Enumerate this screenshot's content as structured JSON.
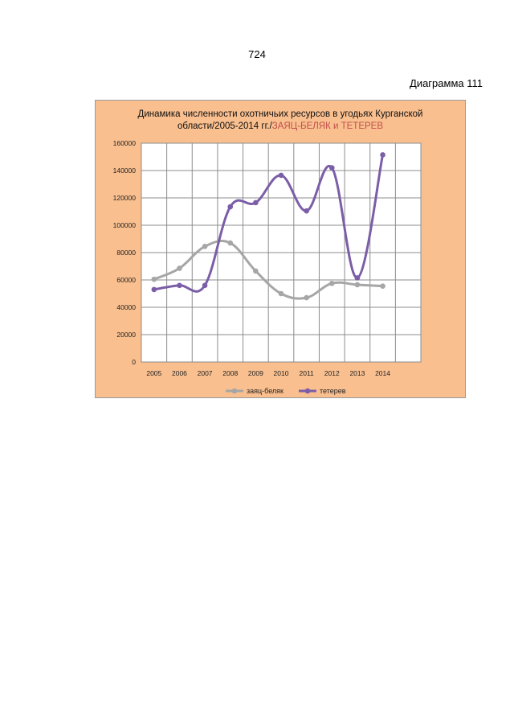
{
  "page": {
    "number": "724",
    "diagram_label": "Диаграмма 111"
  },
  "chart_data": {
    "type": "line",
    "title_line1": "Динамика численности охотничьих ресурсов в угодьях Курганской",
    "title_line2_prefix": "области/2005-2014 гг./",
    "title_line2_accent": "ЗАЯЦ-БЕЛЯК и ТЕТЕРЕВ",
    "categories": [
      "2005",
      "2006",
      "2007",
      "2008",
      "2009",
      "2010",
      "2011",
      "2012",
      "2013",
      "2014"
    ],
    "ylim": [
      0,
      160000
    ],
    "yticks": [
      0,
      20000,
      40000,
      60000,
      80000,
      100000,
      120000,
      140000,
      160000
    ],
    "grid": true,
    "legend_position": "bottom",
    "series": [
      {
        "name": "заяц-беляк",
        "color": "#a6a6a6",
        "values": [
          60500,
          68500,
          84500,
          87000,
          66500,
          50000,
          47000,
          57500,
          56500,
          55500
        ]
      },
      {
        "name": "тетерев",
        "color": "#7b5ea7",
        "values": [
          53000,
          56000,
          56000,
          113500,
          116500,
          136500,
          110500,
          142000,
          61500,
          151500
        ]
      }
    ],
    "colors": {
      "background": "#f9bf8f",
      "plot_area": "#ffffff",
      "title_accent": "#c0504d"
    }
  }
}
